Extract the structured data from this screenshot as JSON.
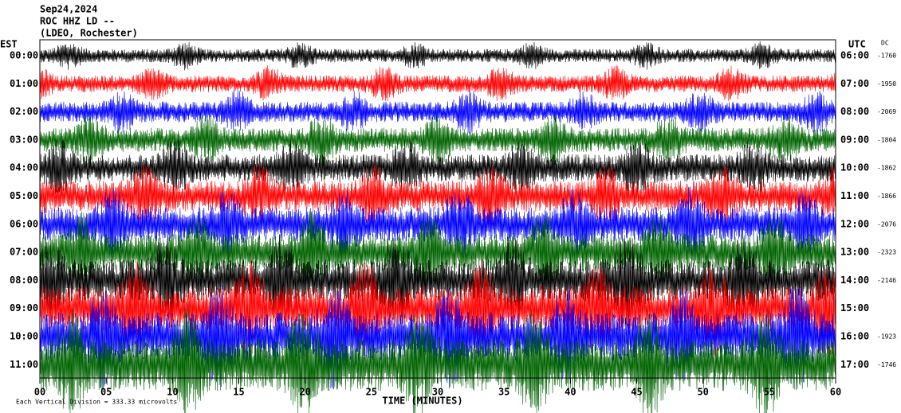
{
  "header": {
    "date": "Sep24,2024",
    "station": "ROC HHZ LD --",
    "location": "(LDEO, Rochester)"
  },
  "left_title": "EST",
  "right_title": "UTC",
  "dc_title": "DC",
  "rows": [
    {
      "est": "00:00",
      "utc": "06:00",
      "dc": "-1760"
    },
    {
      "est": "01:00",
      "utc": "07:00",
      "dc": "-1950"
    },
    {
      "est": "02:00",
      "utc": "08:00",
      "dc": "-2069"
    },
    {
      "est": "03:00",
      "utc": "09:00",
      "dc": "-1804"
    },
    {
      "est": "04:00",
      "utc": "10:00",
      "dc": "-1862"
    },
    {
      "est": "05:00",
      "utc": "11:00",
      "dc": "-1866"
    },
    {
      "est": "06:00",
      "utc": "12:00",
      "dc": "-2076"
    },
    {
      "est": "07:00",
      "utc": "13:00",
      "dc": "-2323"
    },
    {
      "est": "08:00",
      "utc": "14:00",
      "dc": "-2146"
    },
    {
      "est": "09:00",
      "utc": "15:00",
      "dc": null
    },
    {
      "est": "10:00",
      "utc": "16:00",
      "dc": "-1923"
    },
    {
      "est": "11:00",
      "utc": "17:00",
      "dc": "-1746"
    }
  ],
  "x_ticks": [
    "00",
    "05",
    "10",
    "15",
    "20",
    "25",
    "30",
    "35",
    "40",
    "45",
    "50",
    "55",
    "60"
  ],
  "x_label": "TIME (MINUTES)",
  "footer": "Each Vertical Division = 333.33 microvolts"
}
